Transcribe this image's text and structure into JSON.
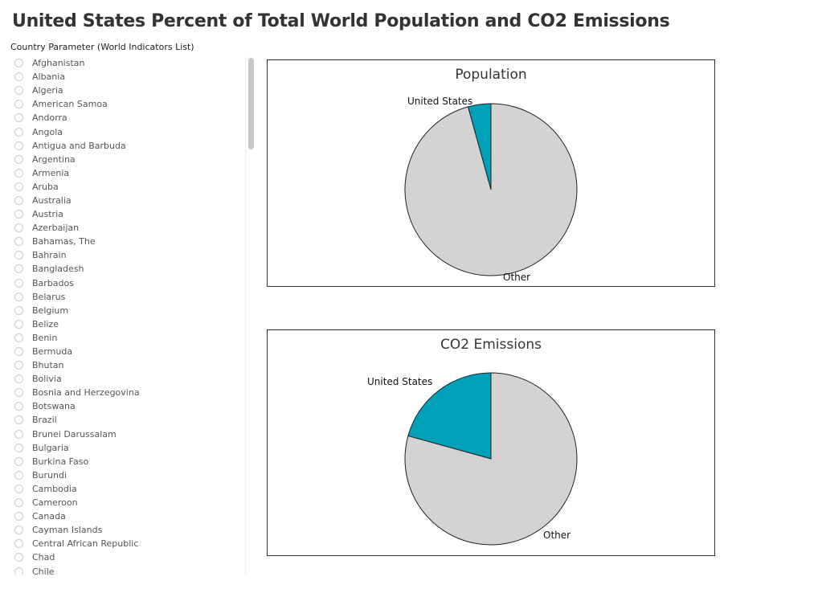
{
  "title": "United States Percent of Total World Population and CO2 Emissions",
  "parameter": {
    "label": "Country Parameter (World Indicators List)",
    "countries": [
      "Afghanistan",
      "Albania",
      "Algeria",
      "American Samoa",
      "Andorra",
      "Angola",
      "Antigua and Barbuda",
      "Argentina",
      "Armenia",
      "Aruba",
      "Australia",
      "Austria",
      "Azerbaijan",
      "Bahamas, The",
      "Bahrain",
      "Bangladesh",
      "Barbados",
      "Belarus",
      "Belgium",
      "Belize",
      "Benin",
      "Bermuda",
      "Bhutan",
      "Bolivia",
      "Bosnia and Herzegovina",
      "Botswana",
      "Brazil",
      "Brunei Darussalam",
      "Bulgaria",
      "Burkina Faso",
      "Burundi",
      "Cambodia",
      "Cameroon",
      "Canada",
      "Cayman Islands",
      "Central African Republic",
      "Chad",
      "Chile"
    ]
  },
  "chart_data": [
    {
      "type": "pie",
      "title": "Population",
      "slices": [
        {
          "label": "United States",
          "value": 4.3,
          "color": "#00a0b8"
        },
        {
          "label": "Other",
          "value": 95.7,
          "color": "#d3d3d3"
        }
      ]
    },
    {
      "type": "pie",
      "title": "CO2 Emissions",
      "slices": [
        {
          "label": "United States",
          "value": 20.7,
          "color": "#00a0b8"
        },
        {
          "label": "Other",
          "value": 79.3,
          "color": "#d3d3d3"
        }
      ]
    }
  ]
}
